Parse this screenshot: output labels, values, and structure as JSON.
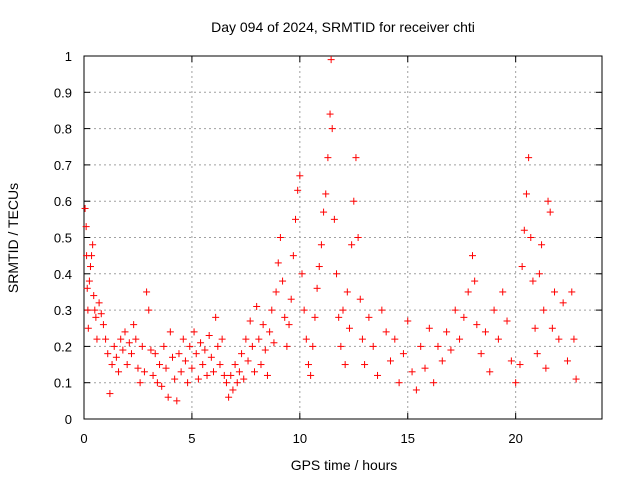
{
  "chart_data": {
    "type": "scatter",
    "title": "Day 094 of 2024, SRMTID for receiver chti",
    "xlabel": "GPS time / hours",
    "ylabel": "SRMTID / TECUs",
    "xlim": [
      0,
      24
    ],
    "ylim": [
      0,
      1
    ],
    "xticks": [
      0,
      5,
      10,
      15,
      20
    ],
    "xtick_labels": [
      "0",
      "5",
      "10",
      "15",
      "20"
    ],
    "yticks": [
      0,
      0.1,
      0.2,
      0.3,
      0.4,
      0.5,
      0.6,
      0.7,
      0.8,
      0.9,
      1
    ],
    "ytick_labels": [
      "0",
      "0.1",
      "0.2",
      "0.3",
      "0.4",
      "0.5",
      "0.6",
      "0.7",
      "0.8",
      "0.9",
      "1"
    ],
    "grid": true,
    "marker": "+",
    "color": "#ff0000",
    "series": [
      {
        "name": "SRMTID",
        "points": [
          [
            0.05,
            0.58
          ],
          [
            0.1,
            0.53
          ],
          [
            0.12,
            0.45
          ],
          [
            0.15,
            0.36
          ],
          [
            0.18,
            0.3
          ],
          [
            0.2,
            0.25
          ],
          [
            0.25,
            0.38
          ],
          [
            0.3,
            0.42
          ],
          [
            0.35,
            0.45
          ],
          [
            0.4,
            0.48
          ],
          [
            0.45,
            0.34
          ],
          [
            0.5,
            0.3
          ],
          [
            0.55,
            0.28
          ],
          [
            0.6,
            0.22
          ],
          [
            0.7,
            0.32
          ],
          [
            0.8,
            0.29
          ],
          [
            0.9,
            0.26
          ],
          [
            1.0,
            0.22
          ],
          [
            1.1,
            0.18
          ],
          [
            1.2,
            0.07
          ],
          [
            1.3,
            0.15
          ],
          [
            1.4,
            0.2
          ],
          [
            1.5,
            0.17
          ],
          [
            1.6,
            0.13
          ],
          [
            1.7,
            0.22
          ],
          [
            1.8,
            0.19
          ],
          [
            1.9,
            0.24
          ],
          [
            2.0,
            0.15
          ],
          [
            2.1,
            0.21
          ],
          [
            2.2,
            0.18
          ],
          [
            2.3,
            0.26
          ],
          [
            2.4,
            0.22
          ],
          [
            2.5,
            0.14
          ],
          [
            2.6,
            0.1
          ],
          [
            2.7,
            0.2
          ],
          [
            2.8,
            0.13
          ],
          [
            2.9,
            0.35
          ],
          [
            3.0,
            0.3
          ],
          [
            3.1,
            0.19
          ],
          [
            3.2,
            0.12
          ],
          [
            3.3,
            0.18
          ],
          [
            3.4,
            0.1
          ],
          [
            3.5,
            0.15
          ],
          [
            3.6,
            0.09
          ],
          [
            3.7,
            0.2
          ],
          [
            3.8,
            0.14
          ],
          [
            3.9,
            0.06
          ],
          [
            4.0,
            0.24
          ],
          [
            4.1,
            0.17
          ],
          [
            4.2,
            0.11
          ],
          [
            4.3,
            0.05
          ],
          [
            4.4,
            0.18
          ],
          [
            4.5,
            0.13
          ],
          [
            4.6,
            0.22
          ],
          [
            4.7,
            0.16
          ],
          [
            4.8,
            0.1
          ],
          [
            4.9,
            0.2
          ],
          [
            5.0,
            0.14
          ],
          [
            5.1,
            0.24
          ],
          [
            5.2,
            0.18
          ],
          [
            5.3,
            0.11
          ],
          [
            5.4,
            0.21
          ],
          [
            5.5,
            0.15
          ],
          [
            5.6,
            0.19
          ],
          [
            5.7,
            0.12
          ],
          [
            5.8,
            0.23
          ],
          [
            5.9,
            0.17
          ],
          [
            6.0,
            0.13
          ],
          [
            6.1,
            0.28
          ],
          [
            6.2,
            0.2
          ],
          [
            6.3,
            0.15
          ],
          [
            6.4,
            0.22
          ],
          [
            6.5,
            0.12
          ],
          [
            6.6,
            0.1
          ],
          [
            6.7,
            0.06
          ],
          [
            6.8,
            0.12
          ],
          [
            6.9,
            0.08
          ],
          [
            7.0,
            0.15
          ],
          [
            7.1,
            0.1
          ],
          [
            7.2,
            0.13
          ],
          [
            7.3,
            0.18
          ],
          [
            7.4,
            0.11
          ],
          [
            7.5,
            0.22
          ],
          [
            7.6,
            0.16
          ],
          [
            7.7,
            0.27
          ],
          [
            7.8,
            0.2
          ],
          [
            7.9,
            0.13
          ],
          [
            8.0,
            0.31
          ],
          [
            8.1,
            0.22
          ],
          [
            8.2,
            0.15
          ],
          [
            8.3,
            0.26
          ],
          [
            8.4,
            0.19
          ],
          [
            8.5,
            0.12
          ],
          [
            8.6,
            0.24
          ],
          [
            8.7,
            0.3
          ],
          [
            8.8,
            0.21
          ],
          [
            8.9,
            0.35
          ],
          [
            9.0,
            0.43
          ],
          [
            9.1,
            0.5
          ],
          [
            9.2,
            0.38
          ],
          [
            9.3,
            0.28
          ],
          [
            9.4,
            0.2
          ],
          [
            9.5,
            0.26
          ],
          [
            9.6,
            0.33
          ],
          [
            9.7,
            0.45
          ],
          [
            9.8,
            0.55
          ],
          [
            9.9,
            0.63
          ],
          [
            10.0,
            0.67
          ],
          [
            10.1,
            0.4
          ],
          [
            10.2,
            0.3
          ],
          [
            10.3,
            0.22
          ],
          [
            10.4,
            0.15
          ],
          [
            10.5,
            0.12
          ],
          [
            10.6,
            0.2
          ],
          [
            10.7,
            0.28
          ],
          [
            10.8,
            0.36
          ],
          [
            10.9,
            0.42
          ],
          [
            11.0,
            0.48
          ],
          [
            11.1,
            0.57
          ],
          [
            11.2,
            0.62
          ],
          [
            11.3,
            0.72
          ],
          [
            11.4,
            0.84
          ],
          [
            11.45,
            0.99
          ],
          [
            11.5,
            0.8
          ],
          [
            11.6,
            0.55
          ],
          [
            11.7,
            0.4
          ],
          [
            11.8,
            0.28
          ],
          [
            11.9,
            0.2
          ],
          [
            12.0,
            0.3
          ],
          [
            12.1,
            0.15
          ],
          [
            12.2,
            0.35
          ],
          [
            12.3,
            0.25
          ],
          [
            12.4,
            0.48
          ],
          [
            12.5,
            0.6
          ],
          [
            12.6,
            0.72
          ],
          [
            12.7,
            0.5
          ],
          [
            12.8,
            0.33
          ],
          [
            12.9,
            0.22
          ],
          [
            13.0,
            0.15
          ],
          [
            13.2,
            0.28
          ],
          [
            13.4,
            0.2
          ],
          [
            13.6,
            0.12
          ],
          [
            13.8,
            0.3
          ],
          [
            14.0,
            0.24
          ],
          [
            14.2,
            0.16
          ],
          [
            14.4,
            0.22
          ],
          [
            14.6,
            0.1
          ],
          [
            14.8,
            0.18
          ],
          [
            15.0,
            0.27
          ],
          [
            15.2,
            0.13
          ],
          [
            15.4,
            0.08
          ],
          [
            15.6,
            0.2
          ],
          [
            15.8,
            0.14
          ],
          [
            16.0,
            0.25
          ],
          [
            16.2,
            0.1
          ],
          [
            16.4,
            0.2
          ],
          [
            16.6,
            0.16
          ],
          [
            16.8,
            0.24
          ],
          [
            17.0,
            0.19
          ],
          [
            17.2,
            0.3
          ],
          [
            17.4,
            0.22
          ],
          [
            17.6,
            0.28
          ],
          [
            17.8,
            0.35
          ],
          [
            18.0,
            0.45
          ],
          [
            18.1,
            0.38
          ],
          [
            18.2,
            0.26
          ],
          [
            18.4,
            0.18
          ],
          [
            18.6,
            0.24
          ],
          [
            18.8,
            0.13
          ],
          [
            19.0,
            0.3
          ],
          [
            19.2,
            0.22
          ],
          [
            19.4,
            0.35
          ],
          [
            19.6,
            0.27
          ],
          [
            19.8,
            0.16
          ],
          [
            20.0,
            0.1
          ],
          [
            20.2,
            0.15
          ],
          [
            20.3,
            0.42
          ],
          [
            20.4,
            0.52
          ],
          [
            20.5,
            0.62
          ],
          [
            20.6,
            0.72
          ],
          [
            20.7,
            0.5
          ],
          [
            20.8,
            0.38
          ],
          [
            20.9,
            0.25
          ],
          [
            21.0,
            0.18
          ],
          [
            21.1,
            0.4
          ],
          [
            21.2,
            0.48
          ],
          [
            21.3,
            0.3
          ],
          [
            21.4,
            0.14
          ],
          [
            21.5,
            0.6
          ],
          [
            21.6,
            0.57
          ],
          [
            21.7,
            0.25
          ],
          [
            21.8,
            0.35
          ],
          [
            22.0,
            0.22
          ],
          [
            22.2,
            0.32
          ],
          [
            22.4,
            0.16
          ],
          [
            22.6,
            0.35
          ],
          [
            22.7,
            0.22
          ],
          [
            22.8,
            0.11
          ]
        ]
      }
    ]
  }
}
